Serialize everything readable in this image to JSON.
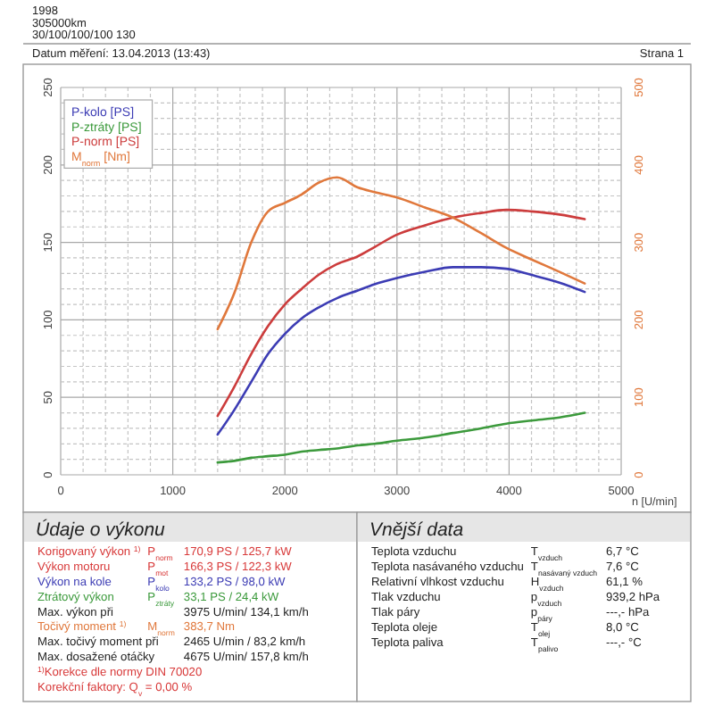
{
  "chart_data": [
    {
      "type": "line",
      "annotations": [
        "1998",
        "305000km",
        "30/100/100/100 130",
        "Datum měření: 13.04.2013 (13:43)",
        "Strana 1"
      ],
      "xlabel": "n [U/min]",
      "xlim": [
        0,
        5000
      ],
      "xticks": [
        0,
        {
          "value": 200,
          "label": null
        },
        {
          "value": 400,
          "label": null
        },
        {
          "value": 600,
          "label": null
        },
        {
          "value": 800,
          "label": null
        },
        1000,
        {
          "value": 1200,
          "label": null
        },
        {
          "value": 1400,
          "label": null
        },
        {
          "value": 1600,
          "label": null
        },
        {
          "value": 1800,
          "label": null
        },
        2000,
        {
          "value": 2200,
          "label": null
        },
        {
          "value": 2400,
          "label": null
        },
        {
          "value": 2600,
          "label": null
        },
        {
          "value": 2800,
          "label": null
        },
        3000,
        {
          "value": 3200,
          "label": null
        },
        {
          "value": 3400,
          "label": null
        },
        {
          "value": 3600,
          "label": null
        },
        {
          "value": 3800,
          "label": null
        },
        4000,
        {
          "value": 4200,
          "label": null
        },
        {
          "value": 4400,
          "label": null
        },
        {
          "value": 4600,
          "label": null
        },
        {
          "value": 4800,
          "label": null
        },
        5000
      ],
      "ylim": [
        0,
        250
      ],
      "yticks": [
        0,
        {
          "value": 10,
          "label": null
        },
        {
          "value": 20,
          "label": null
        },
        {
          "value": 30,
          "label": null
        },
        {
          "value": 40,
          "label": null
        },
        50,
        {
          "value": 60,
          "label": null
        },
        {
          "value": 70,
          "label": null
        },
        {
          "value": 80,
          "label": null
        },
        {
          "value": 90,
          "label": null
        },
        100,
        {
          "value": 110,
          "label": null
        },
        {
          "value": 120,
          "label": null
        },
        {
          "value": 130,
          "label": null
        },
        {
          "value": 140,
          "label": null
        },
        150,
        {
          "value": 160,
          "label": null
        },
        {
          "value": 170,
          "label": null
        },
        {
          "value": 180,
          "label": null
        },
        {
          "value": 190,
          "label": null
        },
        200,
        {
          "value": 210,
          "label": null
        },
        {
          "value": 220,
          "label": null
        },
        {
          "value": 230,
          "label": null
        },
        {
          "value": 240,
          "label": null
        },
        250
      ],
      "y2lim": [
        0,
        500
      ],
      "y2ticks": [
        0,
        100,
        200,
        300,
        400,
        500
      ],
      "grid": true,
      "legend": "top left",
      "x": [
        1400,
        1550,
        1700,
        1850,
        2000,
        2150,
        2300,
        2465,
        2650,
        2800,
        3000,
        3250,
        3500,
        3750,
        3975,
        4200,
        4450,
        4675
      ],
      "series": [
        {
          "name": "P-kolo [PS]",
          "color": "#3c3cb4",
          "values": [
            26,
            42,
            60,
            78,
            91,
            101,
            108,
            114,
            119,
            123,
            127,
            131,
            134,
            134,
            133,
            129,
            124,
            118
          ]
        },
        {
          "name": "P-ztráty [PS]",
          "color": "#3c9a3c",
          "values": [
            8,
            9,
            11,
            12,
            13,
            15,
            16,
            17,
            19,
            20,
            22,
            24,
            27,
            30,
            33,
            35,
            37,
            40
          ]
        },
        {
          "name": "P-norm [PS]",
          "color": "#cc3c3c",
          "values": [
            38,
            57,
            78,
            96,
            110,
            120,
            129,
            136,
            141,
            147,
            155,
            161,
            166,
            169,
            171,
            170,
            168,
            165
          ]
        },
        {
          "name": "M$_{norm}$ [Nm]",
          "color": "#e0783c",
          "axis": "y2",
          "values": [
            188,
            235,
            300,
            340,
            351,
            362,
            377,
            384,
            371,
            365,
            358,
            345,
            332,
            312,
            293,
            278,
            262,
            247
          ]
        }
      ]
    },
    {
      "type": "other",
      "title": "Údaje o výkonu",
      "annotations": [
        "Korigovaný výkon $^{1)}$\tP$_{norm}$\t170,9 PS / 125,7 kW",
        "Výkon motoru\tP$_{mot}$\t166,3 PS / 122,3 kW",
        "Výkon na kole\tP$_{kolo}$\t133,2 PS / 98,0 kW",
        "Ztrátový výkon\tP$_{ztráty}$\t33,1 PS / 24,4 kW",
        "Max. výkon při\t\t3975 U/min/ 134,1 km/h",
        "Točivý moment $^{1)}$\tM$_{norm}$\t383,7 Nm",
        "Max. točivý moment při\t\t2465 U/min / 83,2 km/h",
        "Max. dosažené otáčky\t\t4675 U/min/ 157,8 km/h",
        "$^{1)}$Korekce dle normy DIN 70020",
        "Korekční faktory: Q$_{v}$ = 0,00 %"
      ],
      "colors": [
        "#d83a3a",
        "#d83a3a",
        "#3c3cb4",
        "#3c9a3c",
        null,
        "#e0783c",
        null,
        null,
        "#d83a3a",
        "#d83a3a"
      ]
    },
    {
      "type": "other",
      "title": "Vnější data",
      "annotations": [
        "Teplota vzduchu\tT$_{vzduch}$\t6,7 °C",
        "Teplota nasávaného vzduchu\tT$_{nasávaný vzduch}$\t7,6 °C",
        "Relativní vlhkost vzduchu\tH$_{vzduch}$\t61,1 %",
        "Tlak vzduchu\tp$_{vzduch}$\t939,2 hPa",
        "Tlak páry\tp$_{páry}$\t---,- hPa",
        "Teplota oleje\tT$_{olej}$\t8,0 °C",
        "Teplota paliva\tT$_{palivo}$\t---,- °C"
      ]
    }
  ]
}
